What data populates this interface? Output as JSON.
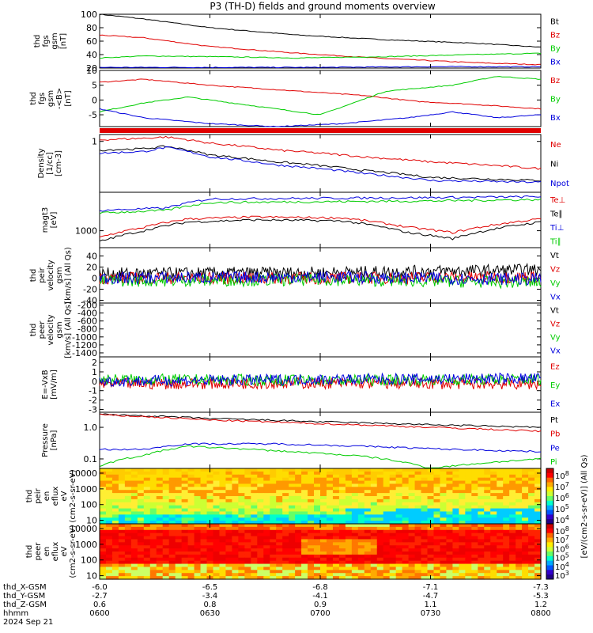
{
  "title": "P3 (TH-D) fields and ground moments overview",
  "chart_data": [
    {
      "type": "line",
      "ylabel": [
        "thd",
        "fgs",
        "gsm",
        "[nT]"
      ],
      "ylim": [
        20,
        100
      ],
      "yticks": [
        "100",
        "80",
        "60",
        "40",
        "20"
      ],
      "ytick_values": [
        100,
        80,
        60,
        40,
        20
      ],
      "series": [
        {
          "name": "Bt",
          "color": "#000000",
          "x": [
            0,
            0.1,
            0.25,
            0.45,
            0.65,
            0.85,
            1
          ],
          "y": [
            100,
            93,
            80,
            69,
            62,
            57,
            51
          ]
        },
        {
          "name": "Bz",
          "color": "#e00000",
          "x": [
            0,
            0.1,
            0.25,
            0.45,
            0.65,
            0.85,
            1
          ],
          "y": [
            69,
            65,
            52,
            42,
            34,
            28,
            25
          ]
        },
        {
          "name": "By",
          "color": "#00cc00",
          "x": [
            0,
            0.1,
            0.25,
            0.45,
            0.65,
            0.85,
            1
          ],
          "y": [
            35,
            38,
            37,
            35,
            37,
            40,
            42
          ]
        },
        {
          "name": "Bx",
          "color": "#0000dd",
          "x": [
            0,
            0.25,
            0.5,
            0.75,
            1
          ],
          "y": [
            21,
            21,
            21,
            22,
            22
          ]
        }
      ]
    },
    {
      "type": "line",
      "ylabel": [
        "thd",
        "fgs",
        "gsm",
        "-<B>",
        "[nT]"
      ],
      "ylim": [
        -9,
        10
      ],
      "yticks": [
        "10",
        "5",
        "0",
        "-5"
      ],
      "ytick_values": [
        10,
        5,
        0,
        -5
      ],
      "series": [
        {
          "name": "Bz",
          "color": "#e00000",
          "x": [
            0,
            0.1,
            0.25,
            0.45,
            0.6,
            0.72,
            0.85,
            1
          ],
          "y": [
            6,
            7,
            5,
            3,
            1.5,
            -0.5,
            -1.5,
            -3
          ]
        },
        {
          "name": "By",
          "color": "#00cc00",
          "x": [
            0,
            0.1,
            0.2,
            0.35,
            0.5,
            0.65,
            0.8,
            0.9,
            1
          ],
          "y": [
            -4,
            -1,
            1,
            -2,
            -5,
            3,
            5,
            8,
            7
          ]
        },
        {
          "name": "Bx",
          "color": "#0000dd",
          "x": [
            0,
            0.1,
            0.25,
            0.4,
            0.55,
            0.7,
            0.8,
            0.9,
            1
          ],
          "y": [
            -3,
            -6,
            -8,
            -9,
            -8,
            -6,
            -4,
            -6,
            -5
          ]
        }
      ]
    },
    {
      "type": "line",
      "ylabel": [
        "Density",
        "[1/cc]",
        "[cm-3]"
      ],
      "ylim": [
        0.05,
        1.5
      ],
      "log": true,
      "yticks": [
        "1"
      ],
      "ytick_values": [
        1
      ],
      "series": [
        {
          "name": "Ne",
          "color": "#e00000",
          "x": [
            0,
            0.1,
            0.15,
            0.25,
            0.4,
            0.6,
            0.75,
            1
          ],
          "y": [
            1.1,
            1.2,
            1.3,
            0.9,
            0.6,
            0.4,
            0.3,
            0.2
          ]
        },
        {
          "name": "Ni",
          "color": "#000000",
          "x": [
            0,
            0.1,
            0.15,
            0.25,
            0.4,
            0.6,
            0.75,
            1
          ],
          "y": [
            0.6,
            0.65,
            0.75,
            0.45,
            0.3,
            0.18,
            0.12,
            0.1
          ]
        },
        {
          "name": "Npot",
          "color": "#0000dd",
          "x": [
            0,
            0.1,
            0.15,
            0.25,
            0.4,
            0.6,
            0.75,
            1
          ],
          "y": [
            0.5,
            0.55,
            0.7,
            0.4,
            0.25,
            0.15,
            0.1,
            0.09
          ]
        }
      ]
    },
    {
      "type": "line",
      "ylabel": [
        "magt3",
        "[eV]"
      ],
      "ylim": [
        400,
        8000
      ],
      "log": true,
      "yticks": [
        "1000"
      ],
      "ytick_values": [
        1000
      ],
      "series": [
        {
          "name": "Te⊥",
          "color": "#e00000",
          "x": [
            0,
            0.1,
            0.2,
            0.35,
            0.55,
            0.7,
            0.8,
            1
          ],
          "y": [
            700,
            1200,
            1900,
            2100,
            2000,
            1200,
            900,
            1900
          ]
        },
        {
          "name": "Te∥",
          "color": "#000000",
          "x": [
            0,
            0.1,
            0.2,
            0.35,
            0.55,
            0.7,
            0.8,
            1
          ],
          "y": [
            550,
            1000,
            1600,
            1800,
            1700,
            900,
            650,
            1600
          ]
        },
        {
          "name": "Ti⊥",
          "color": "#0000dd",
          "x": [
            0,
            0.15,
            0.25,
            0.5,
            0.75,
            1
          ],
          "y": [
            3000,
            3400,
            5600,
            5800,
            6000,
            6300
          ]
        },
        {
          "name": "Ti∥",
          "color": "#00cc00",
          "x": [
            0,
            0.15,
            0.25,
            0.5,
            0.75,
            1
          ],
          "y": [
            2600,
            3000,
            4600,
            4800,
            5000,
            5400
          ]
        }
      ]
    },
    {
      "type": "line",
      "ylabel": [
        "thd",
        "peir",
        "velocity",
        "gsm",
        "[km/s] (All Qs)"
      ],
      "ylim": [
        -45,
        55
      ],
      "yticks": [
        "40",
        "20",
        "0",
        "-20",
        "-40"
      ],
      "ytick_values": [
        40,
        20,
        0,
        -20,
        -40
      ],
      "series": [
        {
          "name": "Vt",
          "color": "#000000",
          "x": [
            0,
            0.5,
            1
          ],
          "y": [
            8,
            10,
            15
          ]
        },
        {
          "name": "Vz",
          "color": "#e00000",
          "x": [
            0,
            0.5,
            1
          ],
          "y": [
            0,
            0,
            2
          ]
        },
        {
          "name": "Vy",
          "color": "#00cc00",
          "x": [
            0,
            0.5,
            1
          ],
          "y": [
            -5,
            -3,
            -8
          ]
        },
        {
          "name": "Vx",
          "color": "#0000dd",
          "x": [
            0,
            0.5,
            1
          ],
          "y": [
            0,
            2,
            -2
          ]
        }
      ]
    },
    {
      "type": "line",
      "ylabel": [
        "thd",
        "peer",
        "velocity",
        "gsm",
        "[km/s] (All Qs)"
      ],
      "ylim": [
        -1500,
        -150
      ],
      "yticks": [
        "-200",
        "-400",
        "-600",
        "-800",
        "-1000",
        "-1200",
        "-1400"
      ],
      "ytick_values": [
        -200,
        -400,
        -600,
        -800,
        -1000,
        -1200,
        -1400
      ],
      "series": [
        {
          "name": "Vt",
          "color": "#000000",
          "x": [],
          "y": []
        },
        {
          "name": "Vz",
          "color": "#e00000",
          "x": [],
          "y": []
        },
        {
          "name": "Vy",
          "color": "#00cc00",
          "x": [],
          "y": []
        },
        {
          "name": "Vx",
          "color": "#0000dd",
          "x": [],
          "y": []
        }
      ]
    },
    {
      "type": "line",
      "ylabel": [
        "E=-VxB",
        "[mV/m]"
      ],
      "ylim": [
        -3.3,
        2.6
      ],
      "yticks": [
        "2",
        "1",
        "0",
        "-1",
        "-2",
        "-3"
      ],
      "ytick_values": [
        2,
        1,
        0,
        -1,
        -2,
        -3
      ],
      "series": [
        {
          "name": "Ez",
          "color": "#e00000",
          "x": [
            0,
            0.5,
            1
          ],
          "y": [
            -0.3,
            -0.2,
            -0.3
          ]
        },
        {
          "name": "Ey",
          "color": "#00cc00",
          "x": [
            0,
            0.5,
            1
          ],
          "y": [
            0.2,
            0.1,
            0.2
          ]
        },
        {
          "name": "Ex",
          "color": "#0000dd",
          "x": [
            0,
            0.5,
            1
          ],
          "y": [
            0,
            0.2,
            0.3
          ]
        }
      ]
    },
    {
      "type": "line",
      "ylabel": [
        "Pressure",
        "[nPa]"
      ],
      "ylim": [
        0.05,
        3
      ],
      "log": true,
      "yticks": [
        "1.0",
        "0.1"
      ],
      "ytick_values": [
        1.0,
        0.1
      ],
      "series": [
        {
          "name": "Pt",
          "color": "#000000",
          "x": [
            0,
            0.25,
            0.5,
            0.75,
            1
          ],
          "y": [
            2.6,
            1.9,
            1.5,
            1.2,
            1.0
          ]
        },
        {
          "name": "Pb",
          "color": "#e00000",
          "x": [
            0,
            0.25,
            0.5,
            0.75,
            1
          ],
          "y": [
            2.5,
            1.7,
            1.3,
            1.0,
            0.75
          ]
        },
        {
          "name": "Pe",
          "color": "#0000dd",
          "x": [
            0,
            0.1,
            0.2,
            0.4,
            0.6,
            0.8,
            1
          ],
          "y": [
            0.2,
            0.2,
            0.3,
            0.3,
            0.25,
            0.2,
            0.17
          ]
        },
        {
          "name": "Pi",
          "color": "#00cc00",
          "x": [
            0,
            0.1,
            0.2,
            0.4,
            0.6,
            0.75,
            0.85,
            1
          ],
          "y": [
            0.06,
            0.13,
            0.25,
            0.18,
            0.12,
            0.05,
            0.07,
            0.1
          ]
        }
      ]
    },
    {
      "type": "heatmap",
      "ylabel": [
        "thd",
        "peir",
        "en",
        "eflux",
        "eV",
        "(cm2-s-sr-eV)"
      ],
      "yticks": [
        "10000",
        "1000",
        "100",
        "10"
      ],
      "ytick_values": [
        10000,
        1000,
        100,
        10
      ],
      "ylim": [
        6,
        20000
      ],
      "log": true
    },
    {
      "type": "heatmap",
      "ylabel": [
        "thd",
        "peer",
        "en",
        "eflux",
        "eV",
        "(cm2-s-sr-eV)"
      ],
      "yticks": [
        "10000",
        "1000",
        "100",
        "10"
      ],
      "ytick_values": [
        10000,
        1000,
        100,
        10
      ],
      "ylim": [
        6,
        20000
      ],
      "log": true
    }
  ],
  "colorbar": {
    "label": "[eV/(cm2-s-sr-eV)]  (All Qs)",
    "ticks": [
      "10^8",
      "10^7",
      "10^6",
      "10^5",
      "10^4"
    ],
    "ticks2": [
      "10^8",
      "10^7",
      "10^6",
      "10^5",
      "10^4",
      "10^3"
    ]
  },
  "xaxis": {
    "rows": [
      {
        "label": "thd_X-GSM",
        "values": [
          "-6.0",
          "-6.5",
          "-6.8",
          "-7.1",
          "-7.3"
        ]
      },
      {
        "label": "thd_Y-GSM",
        "values": [
          "-2.7",
          "-3.4",
          "-4.1",
          "-4.7",
          "-5.3"
        ]
      },
      {
        "label": "thd_Z-GSM",
        "values": [
          "0.6",
          "0.8",
          "0.9",
          "1.1",
          "1.2"
        ]
      },
      {
        "label": "hhmm",
        "values": [
          "0600",
          "0630",
          "0700",
          "0730",
          "0800"
        ]
      }
    ],
    "date": "2024 Sep 21"
  }
}
